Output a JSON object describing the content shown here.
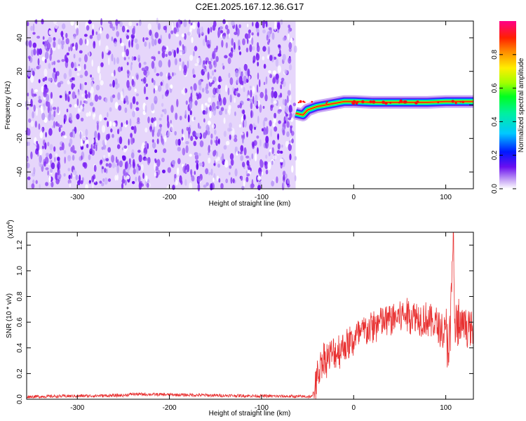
{
  "figure_title": "C2E1.2025.167.12.36.G17",
  "colorbar": {
    "label": "Normalized spectral amplitude",
    "ticks": [
      "0.0",
      "0.2",
      "0.4",
      "0.6",
      "0.8"
    ],
    "range": [
      0,
      1
    ]
  },
  "chart_data": [
    {
      "type": "heatmap",
      "title": "",
      "xlabel": "Height of straight line (km)",
      "ylabel": "Frequency (Hz)",
      "xlim": [
        -355,
        130
      ],
      "ylim": [
        -50,
        50
      ],
      "xticks": [
        "-300",
        "-200",
        "-100",
        "0",
        "100"
      ],
      "yticks": [
        "-40",
        "-20",
        "0",
        "20",
        "40"
      ],
      "noise_region_x": [
        -355,
        -63
      ],
      "signal_line": [
        {
          "x": -63,
          "y": -5
        },
        {
          "x": -55,
          "y": -6
        },
        {
          "x": -50,
          "y": -3
        },
        {
          "x": -40,
          "y": -1
        },
        {
          "x": -30,
          "y": 0
        },
        {
          "x": -20,
          "y": 1
        },
        {
          "x": -10,
          "y": 2
        },
        {
          "x": 0,
          "y": 2
        },
        {
          "x": 20,
          "y": 1.5
        },
        {
          "x": 50,
          "y": 1.5
        },
        {
          "x": 80,
          "y": 1.5
        },
        {
          "x": 100,
          "y": 2
        },
        {
          "x": 130,
          "y": 2
        }
      ]
    },
    {
      "type": "line",
      "title": "",
      "xlabel": "Height of straight line (km)",
      "ylabel": "SNR (10 * v/v)",
      "y_multiplier": "(x10",
      "y_multiplier_exp": "4",
      "xlim": [
        -355,
        130
      ],
      "ylim": [
        0,
        1.3
      ],
      "xticks": [
        "-300",
        "-200",
        "-100",
        "0",
        "100"
      ],
      "yticks": [
        "0.0",
        "0.2",
        "0.4",
        "0.6",
        "0.8",
        "1.0",
        "1.2"
      ],
      "series": [
        {
          "color": "#e83030",
          "envelope": [
            {
              "x": -355,
              "y": 0.02
            },
            {
              "x": -250,
              "y": 0.03
            },
            {
              "x": -240,
              "y": 0.04
            },
            {
              "x": -150,
              "y": 0.03
            },
            {
              "x": -45,
              "y": 0.02
            },
            {
              "x": -40,
              "y": 0.15
            },
            {
              "x": -35,
              "y": 0.3
            },
            {
              "x": -30,
              "y": 0.32
            },
            {
              "x": -20,
              "y": 0.36
            },
            {
              "x": -10,
              "y": 0.42
            },
            {
              "x": 0,
              "y": 0.46
            },
            {
              "x": 10,
              "y": 0.52
            },
            {
              "x": 20,
              "y": 0.56
            },
            {
              "x": 30,
              "y": 0.6
            },
            {
              "x": 40,
              "y": 0.62
            },
            {
              "x": 50,
              "y": 0.65
            },
            {
              "x": 60,
              "y": 0.66
            },
            {
              "x": 70,
              "y": 0.64
            },
            {
              "x": 80,
              "y": 0.62
            },
            {
              "x": 90,
              "y": 0.58
            },
            {
              "x": 100,
              "y": 0.5
            },
            {
              "x": 105,
              "y": 0.45
            },
            {
              "x": 108,
              "y": 1.28
            },
            {
              "x": 110,
              "y": 0.55
            },
            {
              "x": 120,
              "y": 0.58
            },
            {
              "x": 130,
              "y": 0.52
            }
          ]
        }
      ]
    }
  ]
}
